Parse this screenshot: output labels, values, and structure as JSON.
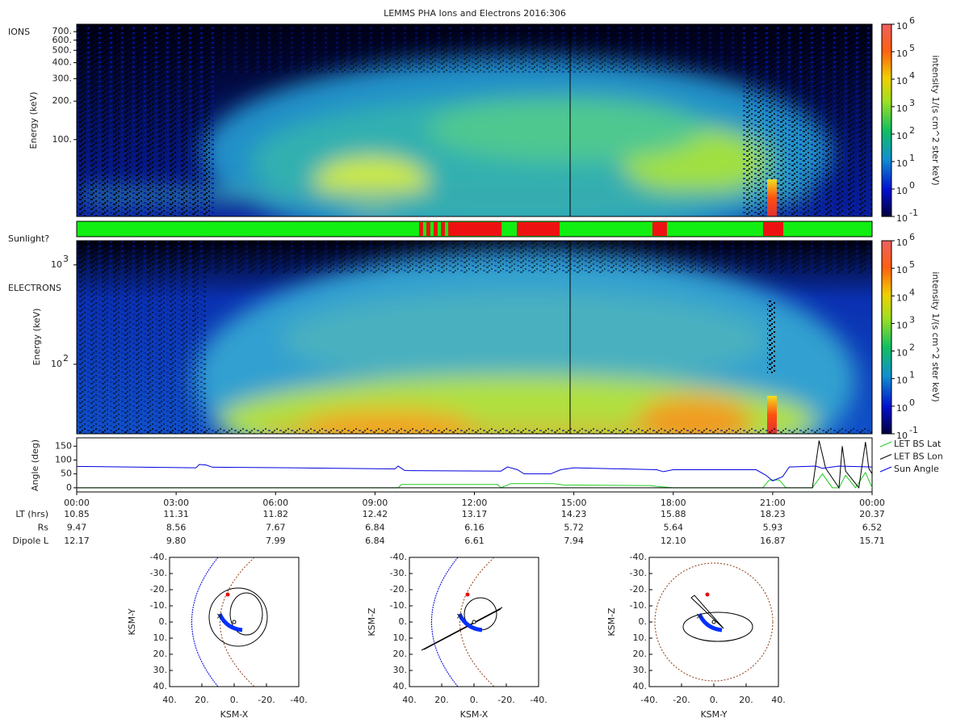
{
  "title": "LEMMS PHA Ions and Electrons  2016:306",
  "ions": {
    "label": "IONS",
    "ylabel": "Energy (keV)",
    "ylim": [
      25,
      800
    ],
    "yticks": [
      {
        "value": 700,
        "label": "700."
      },
      {
        "value": 600,
        "label": "600."
      },
      {
        "value": 500,
        "label": "500."
      },
      {
        "value": 400,
        "label": "400."
      },
      {
        "value": 300,
        "label": "300."
      },
      {
        "value": 200,
        "label": "200."
      },
      {
        "value": 100,
        "label": "100."
      }
    ],
    "colorbar": {
      "label": "intensity 1/(s cm^2 ster keV)",
      "base": "10",
      "exponents": [
        6,
        5,
        4,
        3,
        2,
        1,
        0,
        -1
      ]
    }
  },
  "sunlight": {
    "label": "Sunlight?",
    "xlim": [
      0,
      24
    ],
    "on_color": "#11ee11",
    "off_color": "#ee1111",
    "red_intervals": [
      [
        10.33,
        10.45
      ],
      [
        10.55,
        10.67
      ],
      [
        10.77,
        10.89
      ],
      [
        10.99,
        11.11
      ],
      [
        11.21,
        12.82
      ],
      [
        13.28,
        14.57
      ],
      [
        17.37,
        17.81
      ],
      [
        20.71,
        21.32
      ]
    ]
  },
  "electrons": {
    "label": "ELECTRONS",
    "ylabel": "Energy (keV)",
    "ylim": [
      20,
      1750
    ],
    "base": "10",
    "ytick_exponents": [
      2,
      3
    ],
    "colorbar": {
      "label": "intensity 1/(s cm^2 ster keV)",
      "base": "10",
      "exponents": [
        6,
        5,
        4,
        3,
        2,
        1,
        0,
        -1
      ]
    }
  },
  "chart_data": {
    "type": "line",
    "ylabel": "Angle (deg)",
    "xlim": [
      0,
      24
    ],
    "ylim": [
      -15,
      180
    ],
    "yticks": [
      0,
      50,
      100,
      150
    ],
    "xticks": [
      {
        "value": 0,
        "label": "00:00"
      },
      {
        "value": 3,
        "label": "03:00"
      },
      {
        "value": 6,
        "label": "06:00"
      },
      {
        "value": 9,
        "label": "09:00"
      },
      {
        "value": 12,
        "label": "12:00"
      },
      {
        "value": 15,
        "label": "15:00"
      },
      {
        "value": 18,
        "label": "18:00"
      },
      {
        "value": 21,
        "label": "21:00"
      },
      {
        "value": 24,
        "label": "00:00"
      }
    ],
    "series": [
      {
        "name": "LET BS Lat",
        "color": "#22cc22",
        "x": [
          0,
          9.7,
          9.8,
          12.7,
          12.8,
          13.1,
          14.4,
          14.7,
          17.3,
          17.5,
          18.0,
          20.7,
          20.9,
          21.2,
          21.4,
          22.2,
          22.5,
          22.8,
          23.0,
          23.2,
          23.5,
          23.8,
          24
        ],
        "values": [
          0,
          0,
          12,
          12,
          0,
          15,
          15,
          10,
          8,
          5,
          0,
          0,
          28,
          28,
          0,
          0,
          50,
          0,
          0,
          45,
          0,
          55,
          0
        ]
      },
      {
        "name": "LET BS Lon",
        "color": "#000000",
        "x": [
          0,
          22.2,
          22.4,
          22.6,
          23.0,
          23.1,
          23.2,
          23.6,
          23.8,
          23.9,
          24
        ],
        "values": [
          0,
          0,
          170,
          70,
          0,
          150,
          60,
          0,
          165,
          70,
          50
        ]
      },
      {
        "name": "Sun Angle",
        "color": "#0000dd",
        "x": [
          0,
          3.6,
          3.7,
          3.9,
          4.1,
          6.5,
          9.6,
          9.7,
          9.9,
          12.8,
          13.0,
          13.3,
          13.5,
          14.3,
          14.6,
          15.0,
          17.5,
          17.7,
          18.0,
          20.5,
          20.8,
          21.0,
          21.3,
          21.5,
          22.3,
          22.5,
          23.0,
          24
        ],
        "values": [
          77,
          72,
          84,
          82,
          74,
          72,
          68,
          78,
          62,
          60,
          75,
          65,
          50,
          50,
          65,
          72,
          65,
          58,
          65,
          65,
          45,
          25,
          40,
          75,
          78,
          70,
          78,
          75
        ]
      }
    ]
  },
  "ephemeris": {
    "rows": [
      {
        "label": "LT (hrs)",
        "values": [
          "10.85",
          "11.31",
          "11.82",
          "12.42",
          "13.17",
          "14.23",
          "15.88",
          "18.23",
          "20.37"
        ]
      },
      {
        "label": "Rs",
        "values": [
          "9.47",
          "8.56",
          "7.67",
          "6.84",
          "6.16",
          "5.72",
          "5.64",
          "5.93",
          "6.52"
        ]
      },
      {
        "label": "Dipole L",
        "values": [
          "12.17",
          "9.80",
          "7.99",
          "6.84",
          "6.61",
          "7.94",
          "12.10",
          "16.87",
          "15.71"
        ]
      }
    ]
  },
  "orbits": [
    {
      "xlabel": "KSM-X",
      "ylabel": "KSM-Y",
      "xticks": [
        {
          "value": 40,
          "label": "40."
        },
        {
          "value": 20,
          "label": "20."
        },
        {
          "value": 0,
          "label": "0."
        },
        {
          "value": -20,
          "label": "-20."
        },
        {
          "value": -40,
          "label": "-40."
        }
      ]
    },
    {
      "xlabel": "KSM-X",
      "ylabel": "KSM-Z",
      "xticks": [
        {
          "value": 40,
          "label": "40."
        },
        {
          "value": 20,
          "label": "20."
        },
        {
          "value": 0,
          "label": "0."
        },
        {
          "value": -20,
          "label": "-20."
        },
        {
          "value": -40,
          "label": "-40."
        }
      ]
    },
    {
      "xlabel": "KSM-Y",
      "ylabel": "KSM-Z",
      "xticks": [
        {
          "value": -40,
          "label": "-40."
        },
        {
          "value": -20,
          "label": "-20."
        },
        {
          "value": 0,
          "label": "0."
        },
        {
          "value": 20,
          "label": "20."
        },
        {
          "value": 40,
          "label": "40."
        }
      ]
    }
  ],
  "orbit_yticks": [
    {
      "value": -40,
      "label": "-40."
    },
    {
      "value": -30,
      "label": "-30."
    },
    {
      "value": -20,
      "label": "-20."
    },
    {
      "value": -10,
      "label": "-10."
    },
    {
      "value": 0,
      "label": "0."
    },
    {
      "value": 10,
      "label": "10."
    },
    {
      "value": 20,
      "label": "20."
    },
    {
      "value": 30,
      "label": "30."
    },
    {
      "value": 40,
      "label": "40."
    }
  ]
}
